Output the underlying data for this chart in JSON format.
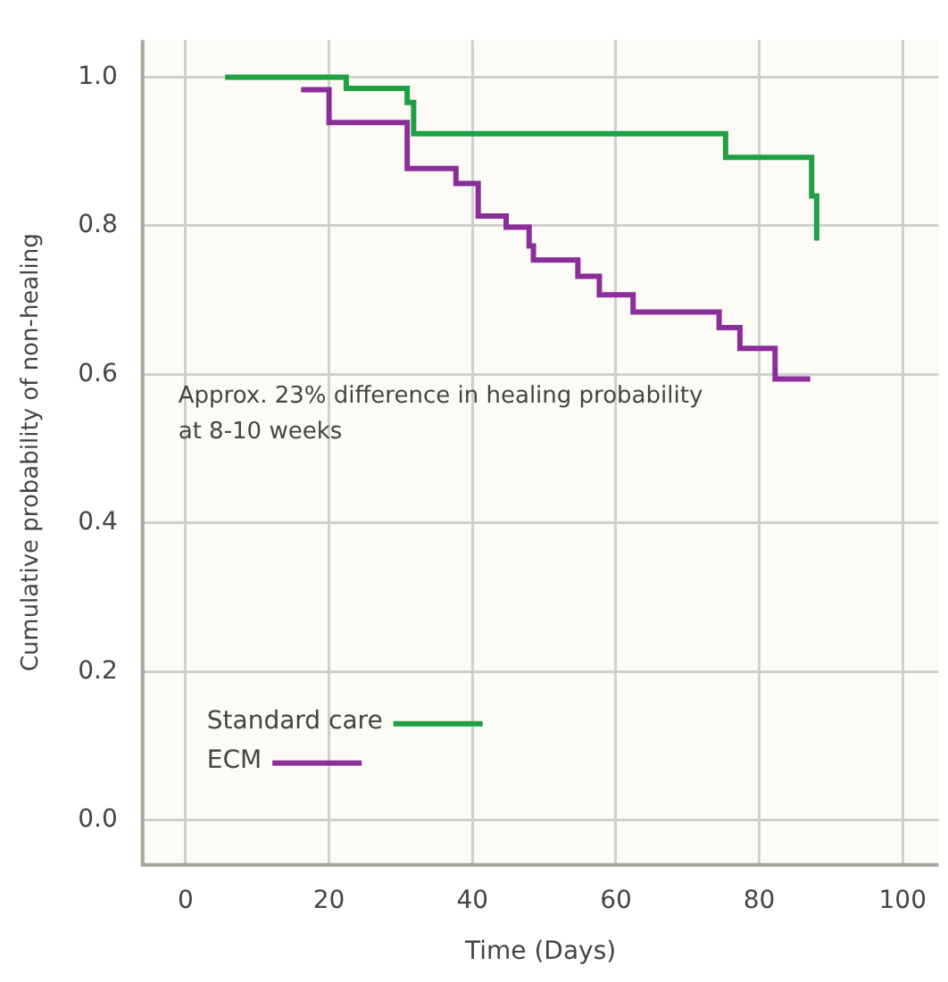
{
  "chart_data": {
    "type": "step",
    "xlabel": "Time (Days)",
    "ylabel": "Cumulative probability of non-healing",
    "annotations": [
      "Approx. 23% difference in healing probability\nat 8-10 weeks"
    ],
    "series": [
      {
        "name": "Standard care",
        "color": "#1fa043",
        "x": [
          5.5,
          22.4,
          30.9,
          31.8,
          75.3,
          87.3,
          88
        ],
        "values": [
          1.0,
          0.985,
          0.966,
          0.924,
          0.892,
          0.84,
          0.78
        ]
      },
      {
        "name": "ECM",
        "color": "#8b2e9a",
        "x": [
          16.1,
          20,
          30.9,
          37.7,
          40.8,
          44.7,
          47.9,
          48.5,
          54.7,
          57.7,
          62.4,
          74.4,
          77.3,
          82.2,
          87.1
        ],
        "values": [
          0.983,
          0.939,
          0.877,
          0.857,
          0.813,
          0.798,
          0.773,
          0.754,
          0.732,
          0.707,
          0.684,
          0.663,
          0.635,
          0.594,
          0.594
        ]
      }
    ],
    "xlim": [
      -6,
      105
    ],
    "xticks": [
      0,
      20,
      40,
      60,
      80,
      100
    ],
    "ylim": [
      -0.06,
      1.05
    ],
    "yticks": [
      {
        "value": 0,
        "label": "0.0"
      },
      {
        "value": 0.2,
        "label": "0.2"
      },
      {
        "value": 0.4,
        "label": "0.4"
      },
      {
        "value": 0.6,
        "label": "0.6"
      },
      {
        "value": 0.8,
        "label": "0.8"
      },
      {
        "value": 1,
        "label": "1.0"
      }
    ],
    "grid": true,
    "legend": "bottom left",
    "line_style": "solid",
    "marker": "none"
  }
}
